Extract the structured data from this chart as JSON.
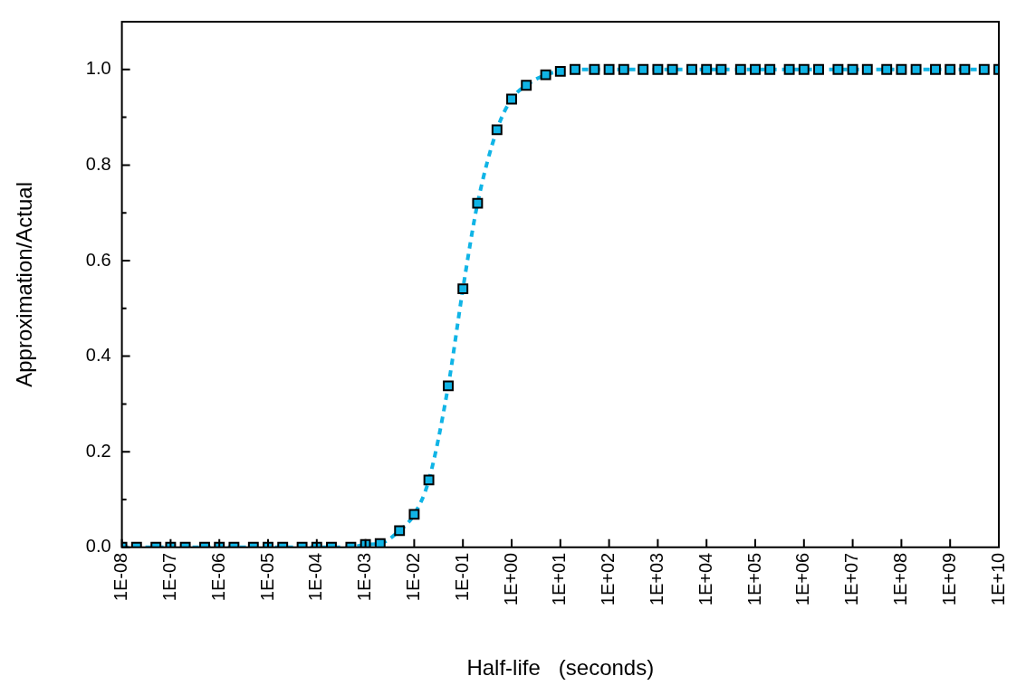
{
  "chart_data": {
    "type": "line",
    "xlabel": "Half-life   (seconds)",
    "ylabel": "Approximation/Actual",
    "log": "x",
    "marker": "square",
    "line_style": "dashed",
    "grid": false,
    "legend": false,
    "xlim": [
      1e-08,
      10000000000.0
    ],
    "ylim": [
      0,
      1.1
    ],
    "xticks": [
      {
        "value": 1e-08,
        "label": "1E-08"
      },
      {
        "value": 1e-07,
        "label": "1E-07"
      },
      {
        "value": 1e-06,
        "label": "1E-06"
      },
      {
        "value": 1e-05,
        "label": "1E-05"
      },
      {
        "value": 0.0001,
        "label": "1E-04"
      },
      {
        "value": 0.001,
        "label": "1E-03"
      },
      {
        "value": 0.01,
        "label": "1E-02"
      },
      {
        "value": 0.1,
        "label": "1E-01"
      },
      {
        "value": 1,
        "label": "1E+00"
      },
      {
        "value": 10,
        "label": "1E+01"
      },
      {
        "value": 100,
        "label": "1E+02"
      },
      {
        "value": 1000,
        "label": "1E+03"
      },
      {
        "value": 10000,
        "label": "1E+04"
      },
      {
        "value": 100000,
        "label": "1E+05"
      },
      {
        "value": 1000000,
        "label": "1E+06"
      },
      {
        "value": 10000000,
        "label": "1E+07"
      },
      {
        "value": 100000000,
        "label": "1E+08"
      },
      {
        "value": 1000000000,
        "label": "1E+09"
      },
      {
        "value": 10000000000,
        "label": "1E+10"
      }
    ],
    "yticks": [
      {
        "value": 0,
        "label": "0.0"
      },
      {
        "value": 0.1,
        "label": null
      },
      {
        "value": 0.2,
        "label": "0.2"
      },
      {
        "value": 0.3,
        "label": null
      },
      {
        "value": 0.4,
        "label": "0.4"
      },
      {
        "value": 0.5,
        "label": null
      },
      {
        "value": 0.6,
        "label": "0.6"
      },
      {
        "value": 0.7,
        "label": null
      },
      {
        "value": 0.8,
        "label": "0.8"
      },
      {
        "value": 0.9,
        "label": null
      },
      {
        "value": 1,
        "label": "1.0"
      }
    ],
    "x": [
      1e-08,
      2e-08,
      5e-08,
      1e-07,
      2e-07,
      5e-07,
      1e-06,
      2e-06,
      5e-06,
      1e-05,
      2e-05,
      5e-05,
      0.0001,
      0.0002,
      0.0005,
      0.001,
      0.002,
      0.005,
      0.01,
      0.02,
      0.05,
      0.1,
      0.2,
      0.5,
      1,
      2,
      5,
      10,
      20,
      50,
      100,
      200,
      500,
      1000,
      2000,
      5000,
      10000,
      20000,
      50000,
      100000,
      200000,
      500000,
      1000000,
      2000000,
      5000000,
      10000000,
      20000000,
      50000000,
      100000000,
      200000000,
      500000000,
      1000000000,
      2000000000,
      5000000000,
      10000000000
    ],
    "series": [
      {
        "color": "#10b4e6",
        "values": [
          0,
          0,
          0,
          0,
          0,
          0,
          0,
          0,
          0,
          0,
          0,
          0,
          0,
          0,
          0,
          0.006,
          0.008,
          0.035,
          0.069,
          0.141,
          0.338,
          0.541,
          0.72,
          0.874,
          0.938,
          0.967,
          0.989,
          0.996,
          1,
          1,
          1,
          1,
          1,
          1,
          1,
          1,
          1,
          1,
          1,
          1,
          1,
          1,
          1,
          1,
          1,
          1,
          1,
          1,
          1,
          1,
          1,
          1,
          1,
          1,
          1
        ]
      }
    ]
  }
}
